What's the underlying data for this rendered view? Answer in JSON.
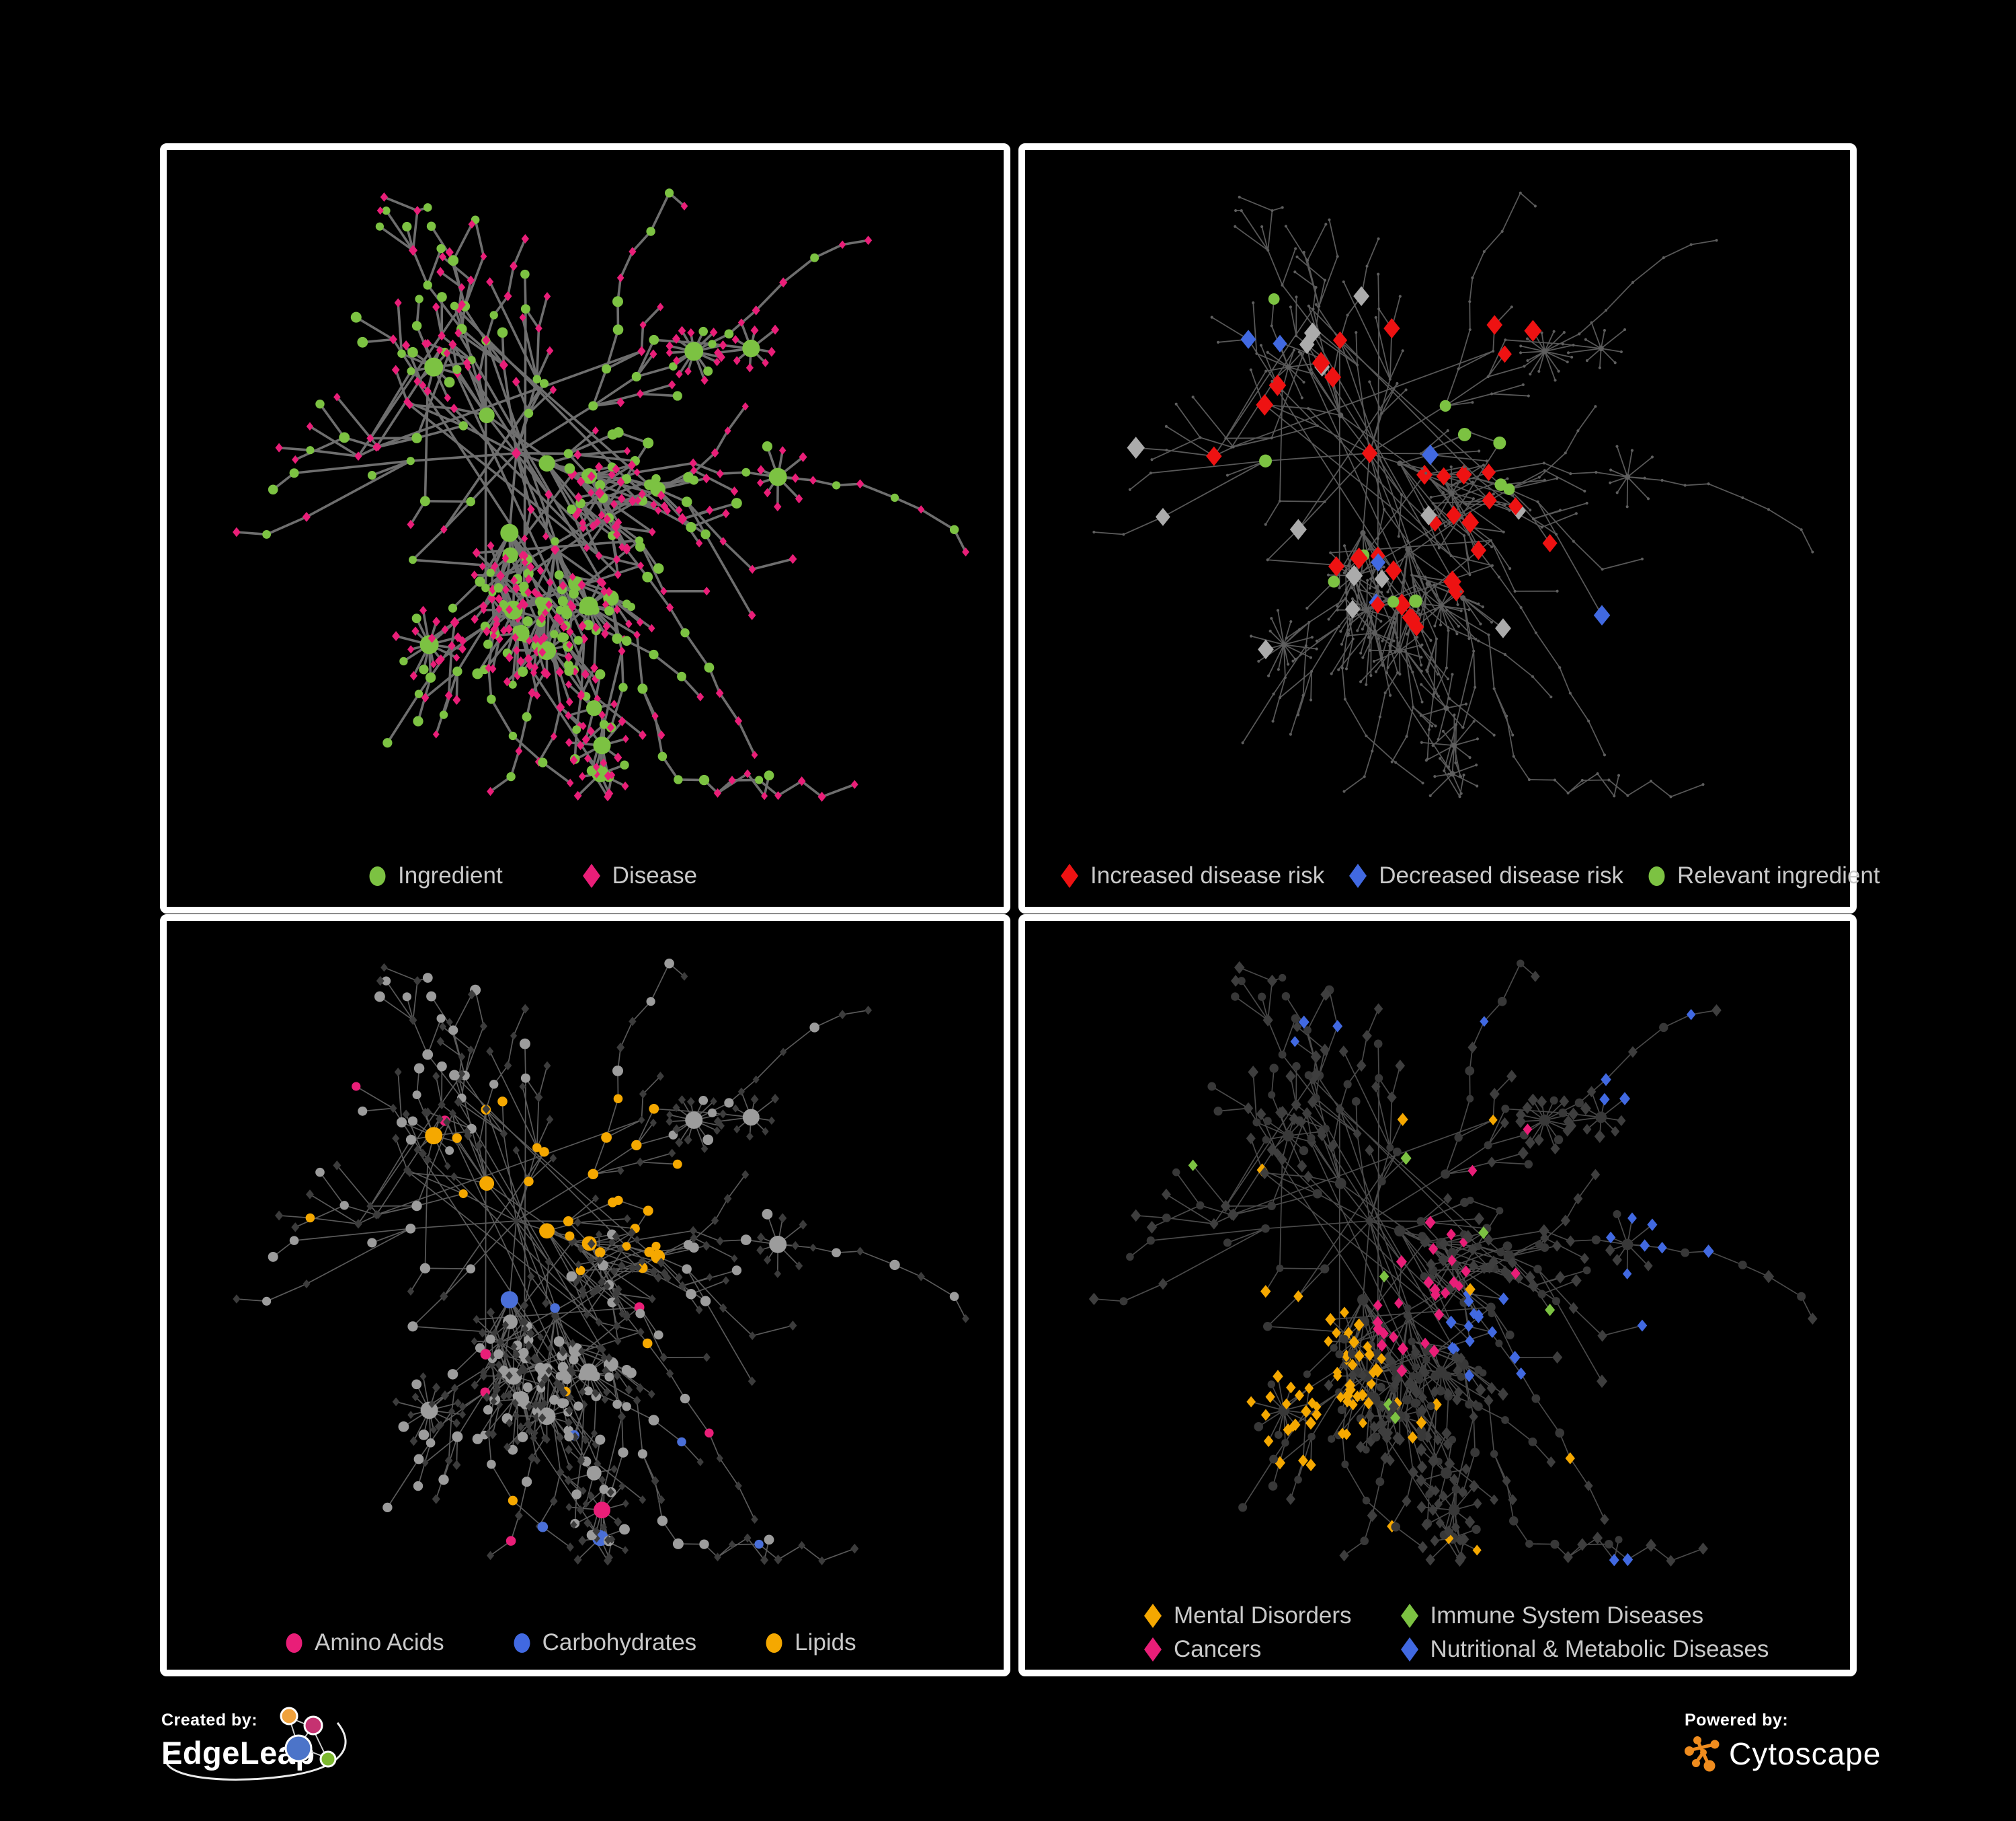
{
  "figure": {
    "background": "#000000",
    "panel_border_color": "#ffffff",
    "legend_text_color": "#C9C9C9"
  },
  "palette": {
    "green": "#7CC242",
    "pink": "#E91E78",
    "red": "#EE1212",
    "blue": "#4169E1",
    "orange": "#F5A800",
    "neutral_gray": "#ABABAB",
    "ingredient_gray": "#9C9C9C",
    "dim_dark": "#3C3C3C"
  },
  "panels": [
    {
      "id": "ingredient-disease",
      "legend": [
        {
          "shape": "circle",
          "color": "#7CC242",
          "label": "Ingredient"
        },
        {
          "shape": "diamond",
          "color": "#E91E78",
          "label": "Disease"
        }
      ],
      "style": {
        "edge": "#6E6E6E",
        "edge_width": 3.6,
        "ingredient": "#7CC242",
        "disease": "#E91E78"
      }
    },
    {
      "id": "disease-risk",
      "legend": [
        {
          "shape": "diamond",
          "color": "#EE1212",
          "label": "Increased disease risk"
        },
        {
          "shape": "diamond",
          "color": "#4169E1",
          "label": "Decreased disease risk"
        },
        {
          "shape": "circle",
          "color": "#7CC242",
          "label": "Relevant ingredient"
        }
      ],
      "style": {
        "edge": "#585858",
        "edge_width": 1.8,
        "base": "#5E5E5E",
        "increased": "#EE1212",
        "decreased": "#4169E1",
        "neutral": "#ABABAB",
        "relevant": "#7CC242"
      }
    },
    {
      "id": "ingredient-classes",
      "legend": [
        {
          "shape": "circle",
          "color": "#E91E78",
          "label": "Amino Acids"
        },
        {
          "shape": "circle",
          "color": "#4169E1",
          "label": "Carbohydrates"
        },
        {
          "shape": "circle",
          "color": "#F5A800",
          "label": "Lipids"
        }
      ],
      "style": {
        "edge": "#5A5A5A",
        "edge_width": 1.7,
        "disease": "#3C3C3C",
        "base": "#9C9C9C",
        "amino": "#E91E78",
        "carbs": "#4A6FD8",
        "lipids": "#F5A800"
      }
    },
    {
      "id": "disease-categories",
      "legend": [
        {
          "shape": "diamond",
          "color": "#F5A800",
          "label": "Mental Disorders"
        },
        {
          "shape": "diamond",
          "color": "#7CC242",
          "label": "Immune System Diseases"
        },
        {
          "shape": "diamond",
          "color": "#E91E78",
          "label": "Cancers"
        },
        {
          "shape": "diamond",
          "color": "#4169E1",
          "label": "Nutritional & Metabolic Diseases"
        }
      ],
      "style": {
        "edge": "#4A4A4A",
        "edge_width": 1.7,
        "ingredient": "#383838",
        "disease": "#3E3E3E",
        "mental": "#F5A800",
        "immune": "#7CC242",
        "cancers": "#E91E78",
        "nutritional": "#4169E1"
      }
    }
  ],
  "network": {
    "seed": 7,
    "tree_nodes": 330,
    "chains": 12,
    "stars": 14,
    "cross_links": 38
  },
  "footer": {
    "created_by": {
      "label": "Created by:",
      "brand": "EdgeLeap"
    },
    "powered_by": {
      "label": "Powered by:",
      "brand": "Cytoscape"
    }
  }
}
